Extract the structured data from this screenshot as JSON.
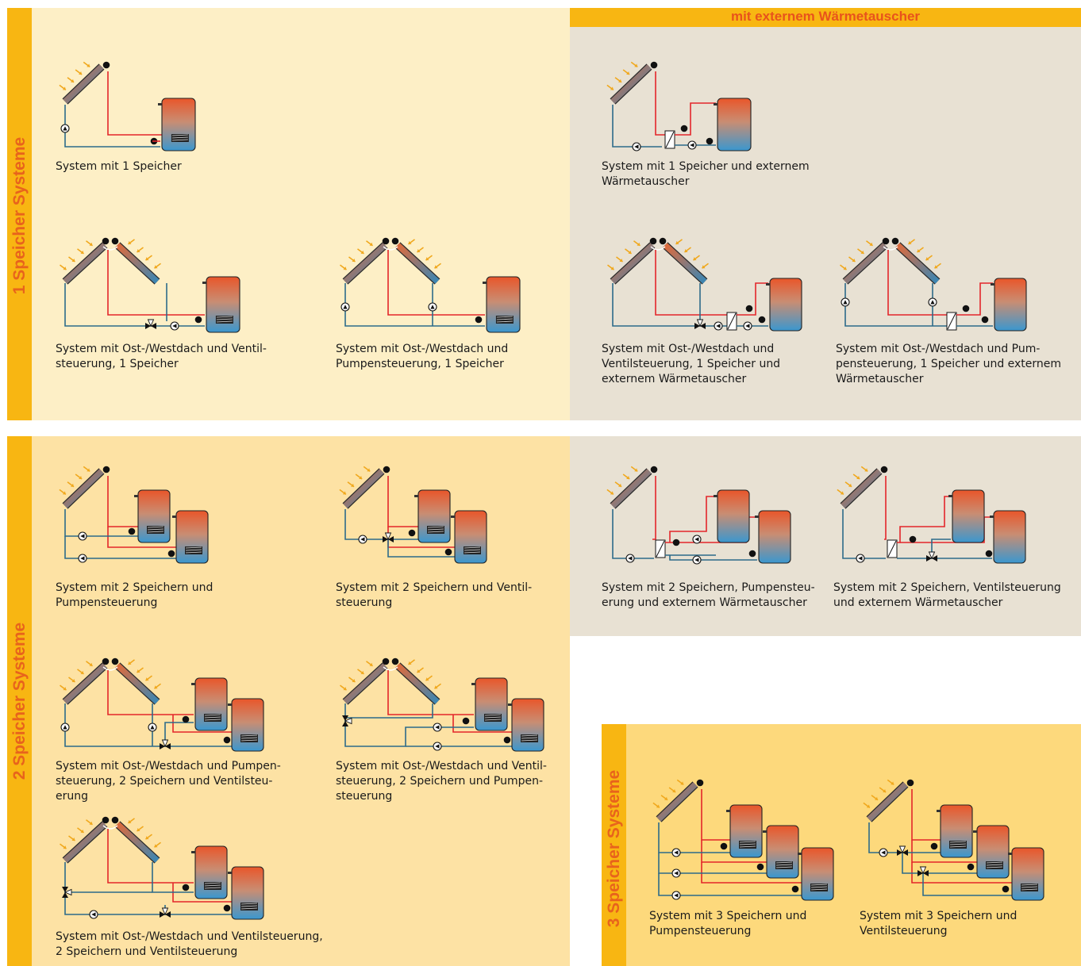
{
  "groups": {
    "one": "1 Speicher Systeme",
    "two": "2 Speicher Systeme",
    "three": "3 Speicher Systeme"
  },
  "header": "mit externem Wärmetauscher",
  "captions": {
    "c1": [
      "System mit 1 Speicher"
    ],
    "c2": [
      "System mit 1 Speicher und externem",
      "Wärmetauscher"
    ],
    "c3": [
      "System mit Ost-/Westdach und Ventil-",
      "steuerung, 1 Speicher"
    ],
    "c4": [
      "System mit Ost-/Westdach und",
      "Pumpensteuerung, 1 Speicher"
    ],
    "c5": [
      "System mit Ost-/Westdach und",
      "Ventilsteuerung, 1 Speicher und",
      "externem Wärmetauscher"
    ],
    "c6": [
      "System mit Ost-/Westdach und Pum-",
      "pensteuerung, 1 Speicher und externem",
      "Wärmetauscher"
    ],
    "c7": [
      "System mit 2 Speichern und",
      "Pumpensteuerung"
    ],
    "c8": [
      "System mit 2 Speichern und Ventil-",
      "steuerung"
    ],
    "c9": [
      "System mit 2 Speichern, Pumpensteu-",
      "erung und externem Wärmetauscher"
    ],
    "c10": [
      "System mit 2 Speichern, Ventilsteuerung",
      "und externem Wärmetauscher"
    ],
    "c11": [
      "System mit Ost-/Westdach und Pumpen-",
      "steuerung, 2 Speichern und Ventilsteu-",
      "erung"
    ],
    "c12": [
      "System mit Ost-/Westdach und Ventil-",
      "steuerung, 2 Speichern und Pumpen-",
      "steuerung"
    ],
    "c13": [
      "System mit Ost-/Westdach und Ventilsteuerung,",
      "2 Speichern und Ventilsteuerung"
    ],
    "c14": [
      "System mit 3 Speichern und",
      "Pumpensteuerung"
    ],
    "c15": [
      "System mit 3 Speichern und",
      "Ventilsteuerung"
    ]
  },
  "colors": {
    "group_bar": "#f8b612",
    "group_label": "#e8631c",
    "panel_one": "#fdefc6",
    "panel_two": "#fde2a4",
    "panel_three": "#fdd97c",
    "panel_exchanger": "#e8e1d3",
    "pipe_hot": "#e3262a",
    "pipe_cold": "#2c6b8a"
  }
}
